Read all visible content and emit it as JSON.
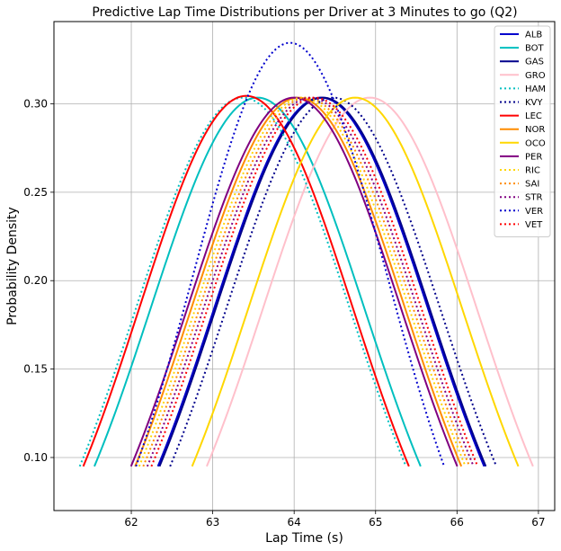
{
  "chart_data": {
    "type": "line",
    "title": "Predictive Lap Time Distributions per Driver at 3 Minutes to go (Q2)",
    "xlabel": "Lap Time (s)",
    "ylabel": "Probability Density",
    "xlim": [
      61.05,
      67.2
    ],
    "ylim": [
      0.07,
      0.3465
    ],
    "xticks": [
      62,
      63,
      64,
      65,
      66,
      67
    ],
    "yticks": [
      0.1,
      0.15,
      0.2,
      0.25,
      0.3
    ],
    "xtick_labels": [
      "62",
      "63",
      "64",
      "65",
      "66",
      "67"
    ],
    "ytick_labels": [
      "0.10",
      "0.15",
      "0.20",
      "0.25",
      "0.30"
    ],
    "grid": true,
    "legend_position": "top-right",
    "curve_cutoff": 0.095,
    "series": [
      {
        "name": "ALB",
        "mean": 64.33,
        "peak": 0.3035,
        "color": "#0000cd",
        "dash": "solid"
      },
      {
        "name": "BOT",
        "mean": 63.55,
        "peak": 0.3035,
        "color": "#00bfbf",
        "dash": "solid"
      },
      {
        "name": "GAS",
        "mean": 64.35,
        "peak": 0.3035,
        "color": "#00008b",
        "dash": "solid"
      },
      {
        "name": "GRO",
        "mean": 64.93,
        "peak": 0.3035,
        "color": "#ffc0cb",
        "dash": "solid"
      },
      {
        "name": "HAM",
        "mean": 63.37,
        "peak": 0.3035,
        "color": "#00bfbf",
        "dash": "dotted"
      },
      {
        "name": "KVY",
        "mean": 64.48,
        "peak": 0.3035,
        "color": "#00008b",
        "dash": "dotted"
      },
      {
        "name": "LEC",
        "mean": 63.41,
        "peak": 0.3045,
        "color": "#ff0000",
        "dash": "solid"
      },
      {
        "name": "NOR",
        "mean": 64.05,
        "peak": 0.3035,
        "color": "#ff8c00",
        "dash": "solid"
      },
      {
        "name": "OCO",
        "mean": 64.75,
        "peak": 0.3035,
        "color": "#ffd700",
        "dash": "solid"
      },
      {
        "name": "PER",
        "mean": 64.0,
        "peak": 0.3035,
        "color": "#800080",
        "dash": "solid"
      },
      {
        "name": "RIC",
        "mean": 64.1,
        "peak": 0.3035,
        "color": "#ffd700",
        "dash": "dotted"
      },
      {
        "name": "SAI",
        "mean": 64.15,
        "peak": 0.3035,
        "color": "#ff8c00",
        "dash": "dotted"
      },
      {
        "name": "STR",
        "mean": 64.2,
        "peak": 0.3035,
        "color": "#800080",
        "dash": "dotted"
      },
      {
        "name": "VER",
        "mean": 63.95,
        "peak": 0.3345,
        "color": "#0000cd",
        "dash": "dotted"
      },
      {
        "name": "VET",
        "mean": 64.25,
        "peak": 0.3035,
        "color": "#ff0000",
        "dash": "dotted"
      }
    ]
  }
}
